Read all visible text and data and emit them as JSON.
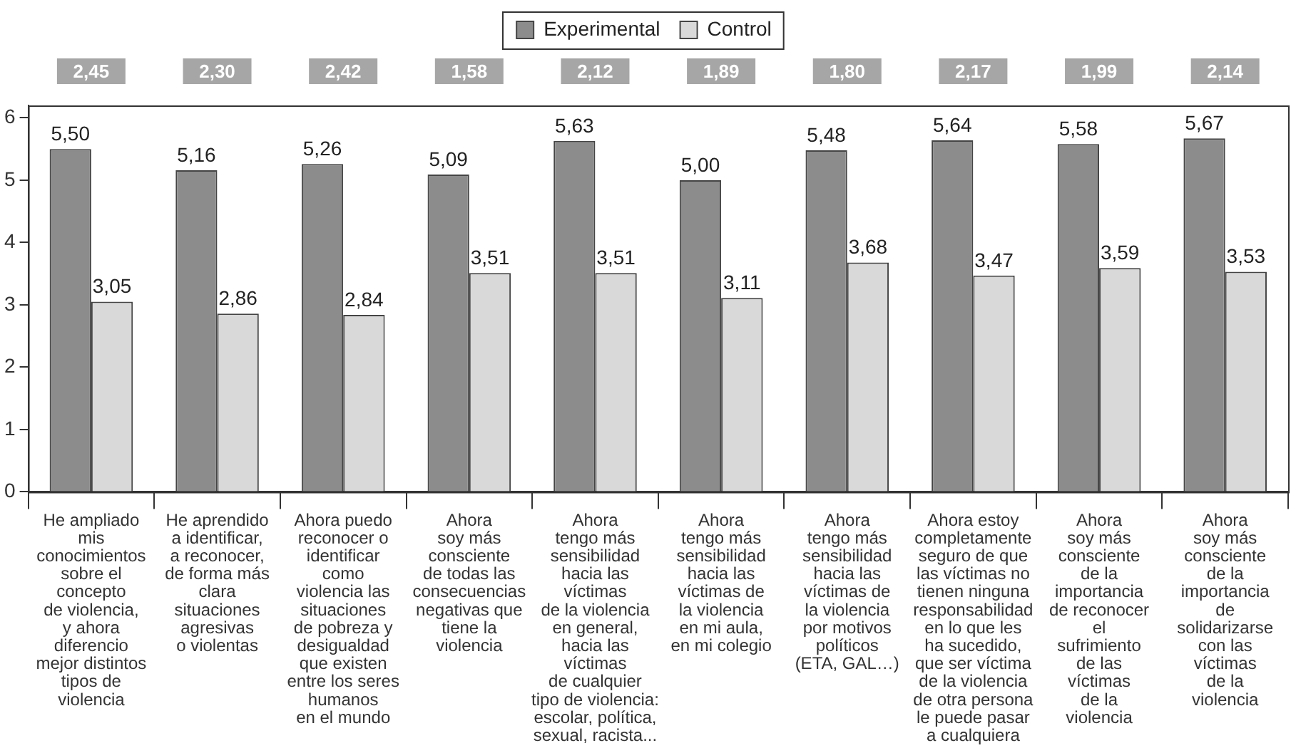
{
  "chart_data": {
    "type": "bar",
    "categories": [
      "He ampliado\nmis\nconocimientos\nsobre el\nconcepto\nde violencia,\ny ahora\ndiferencio\nmejor distintos\ntipos de\nviolencia",
      "He aprendido\na identificar,\na reconocer,\nde forma más\nclara\nsituaciones\nagresivas\no violentas",
      "Ahora puedo\nreconocer o\nidentificar\ncomo\nviolencia las\nsituaciones\nde pobreza y\ndesigualdad\nque existen\nentre los seres\nhumanos\nen el mundo",
      "Ahora\nsoy más\nconsciente\nde todas las\nconsecuencias\nnegativas que\ntiene la\nviolencia",
      "Ahora\ntengo más\nsensibilidad\nhacia las\nvíctimas\nde la violencia\nen general,\nhacia las\nvíctimas\nde cualquier\ntipo de violencia:\nescolar, política,\nsexual, racista...",
      "Ahora\ntengo más\nsensibilidad\nhacia las\nvíctimas de\nla violencia\nen mi aula,\nen mi colegio",
      "Ahora\ntengo más\nsensibilidad\nhacia las\nvíctimas de\nla violencia\npor motivos\npolíticos\n(ETA, GAL…)",
      "Ahora estoy\ncompletamente\nseguro de que\nlas víctimas no\ntienen ninguna\nresponsabilidad\nen lo que les\nha sucedido,\nque ser víctima\nde la violencia\nde otra persona\nle puede pasar\na cualquiera",
      "Ahora\nsoy más\nconsciente\nde la\nimportancia\nde reconocer\nel\nsufrimiento\nde las\nvíctimas\nde la\nviolencia",
      "Ahora\nsoy más\nconsciente\nde la\nimportancia\nde\nsolidarizarse\ncon las\nvíctimas\nde la\nviolencia"
    ],
    "series": [
      {
        "name": "Experimental",
        "color": "#8c8c8c",
        "values": [
          5.5,
          5.16,
          5.26,
          5.09,
          5.63,
          5.0,
          5.48,
          5.64,
          5.58,
          5.67
        ],
        "value_labels": [
          "5,50",
          "5,16",
          "5,26",
          "5,09",
          "5,63",
          "5,00",
          "5,48",
          "5,64",
          "5,58",
          "5,67"
        ]
      },
      {
        "name": "Control",
        "color": "#d9d9d9",
        "values": [
          3.05,
          2.86,
          2.84,
          3.51,
          3.51,
          3.11,
          3.68,
          3.47,
          3.59,
          3.53
        ],
        "value_labels": [
          "3,05",
          "2,86",
          "2,84",
          "3,51",
          "3,51",
          "3,11",
          "3,68",
          "3,47",
          "3,59",
          "3,53"
        ]
      }
    ],
    "annotations": [
      "2,45",
      "2,30",
      "2,42",
      "1,58",
      "2,12",
      "1,89",
      "1,80",
      "2,17",
      "1,99",
      "2,14"
    ],
    "ylim": [
      0,
      6.2
    ],
    "yticks": [
      0,
      1,
      2,
      3,
      4,
      5,
      6
    ],
    "legend": "top",
    "grid": false
  }
}
